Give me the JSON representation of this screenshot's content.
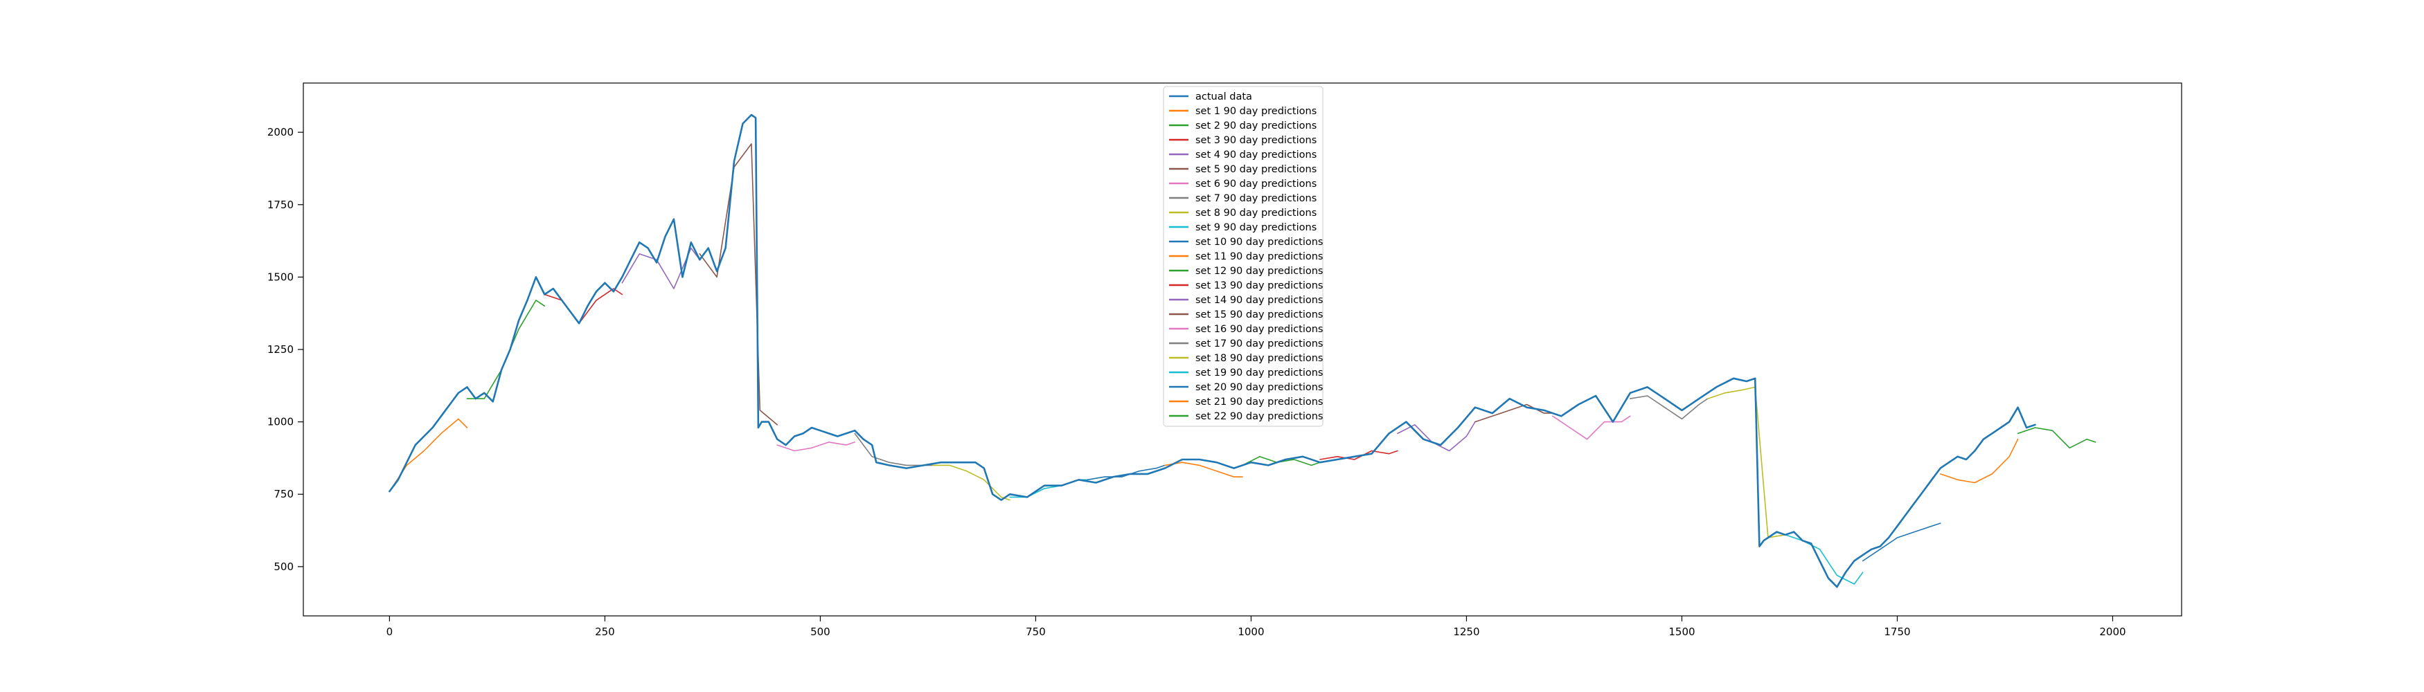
{
  "chart_data": {
    "type": "line",
    "title": "",
    "xlabel": "",
    "ylabel": "",
    "xlim": [
      -100,
      2080
    ],
    "ylim": [
      330,
      2170
    ],
    "xticks": [
      0,
      250,
      500,
      750,
      1000,
      1250,
      1500,
      1750,
      2000
    ],
    "yticks": [
      500,
      750,
      1000,
      1250,
      1500,
      1750,
      2000
    ],
    "grid": false,
    "legend_position": "upper center",
    "series": [
      {
        "name": "actual data",
        "color": "#1f77b4",
        "width": 2.6,
        "x": [
          0,
          10,
          20,
          30,
          40,
          50,
          60,
          70,
          80,
          90,
          100,
          110,
          120,
          130,
          140,
          150,
          160,
          170,
          180,
          190,
          200,
          210,
          220,
          230,
          240,
          250,
          260,
          270,
          280,
          290,
          300,
          310,
          320,
          330,
          340,
          350,
          360,
          370,
          380,
          390,
          400,
          410,
          420,
          425,
          428,
          432,
          440,
          450,
          460,
          470,
          480,
          490,
          500,
          510,
          520,
          530,
          540,
          550,
          560,
          565,
          580,
          600,
          620,
          640,
          660,
          680,
          690,
          700,
          710,
          720,
          740,
          760,
          780,
          800,
          820,
          840,
          860,
          880,
          900,
          920,
          940,
          960,
          980,
          1000,
          1020,
          1040,
          1060,
          1080,
          1100,
          1120,
          1140,
          1160,
          1180,
          1200,
          1220,
          1240,
          1260,
          1280,
          1300,
          1320,
          1340,
          1360,
          1380,
          1400,
          1420,
          1440,
          1460,
          1480,
          1500,
          1520,
          1540,
          1560,
          1575,
          1585,
          1590,
          1595,
          1600,
          1610,
          1620,
          1630,
          1640,
          1650,
          1660,
          1670,
          1680,
          1690,
          1700,
          1710,
          1720,
          1730,
          1740,
          1750,
          1760,
          1770,
          1780,
          1790,
          1800,
          1810,
          1820,
          1830,
          1840,
          1850,
          1860,
          1870,
          1880,
          1890,
          1900,
          1910
        ],
        "y": [
          760,
          800,
          860,
          920,
          950,
          980,
          1020,
          1060,
          1100,
          1120,
          1080,
          1100,
          1070,
          1180,
          1250,
          1350,
          1420,
          1500,
          1440,
          1460,
          1420,
          1380,
          1340,
          1400,
          1450,
          1480,
          1450,
          1500,
          1560,
          1620,
          1600,
          1550,
          1640,
          1700,
          1500,
          1620,
          1560,
          1600,
          1520,
          1600,
          1900,
          2030,
          2060,
          2050,
          980,
          1000,
          1000,
          940,
          920,
          950,
          960,
          980,
          970,
          960,
          950,
          960,
          970,
          940,
          920,
          860,
          850,
          840,
          850,
          860,
          860,
          860,
          840,
          750,
          730,
          750,
          740,
          780,
          780,
          800,
          790,
          810,
          820,
          820,
          840,
          870,
          870,
          860,
          840,
          860,
          850,
          870,
          880,
          860,
          870,
          880,
          890,
          960,
          1000,
          940,
          920,
          980,
          1050,
          1030,
          1080,
          1050,
          1040,
          1020,
          1060,
          1090,
          1000,
          1100,
          1120,
          1080,
          1040,
          1080,
          1120,
          1150,
          1140,
          1150,
          570,
          590,
          600,
          620,
          610,
          620,
          590,
          580,
          520,
          460,
          430,
          480,
          520,
          540,
          560,
          570,
          600,
          640,
          680,
          720,
          760,
          800,
          840,
          860,
          880,
          870,
          900,
          940,
          960,
          980,
          1000,
          1050,
          980,
          990
        ]
      },
      {
        "name": "set 1 90 day predictions",
        "color": "#ff7f0e",
        "width": 1.6,
        "x": [
          0,
          20,
          40,
          60,
          80,
          90
        ],
        "y": [
          760,
          850,
          900,
          960,
          1010,
          980
        ]
      },
      {
        "name": "set 2 90 day predictions",
        "color": "#2ca02c",
        "width": 1.6,
        "x": [
          90,
          110,
          130,
          150,
          170,
          180
        ],
        "y": [
          1080,
          1080,
          1180,
          1320,
          1420,
          1400
        ]
      },
      {
        "name": "set 3 90 day predictions",
        "color": "#d62728",
        "width": 1.6,
        "x": [
          180,
          200,
          220,
          240,
          260,
          270
        ],
        "y": [
          1440,
          1420,
          1340,
          1420,
          1460,
          1440
        ]
      },
      {
        "name": "set 4 90 day predictions",
        "color": "#9467bd",
        "width": 1.6,
        "x": [
          270,
          290,
          310,
          330,
          350,
          360
        ],
        "y": [
          1480,
          1580,
          1560,
          1460,
          1600,
          1560
        ]
      },
      {
        "name": "set 5 90 day predictions",
        "color": "#8c564b",
        "width": 1.6,
        "x": [
          360,
          380,
          400,
          420,
          430,
          450
        ],
        "y": [
          1580,
          1500,
          1880,
          1960,
          1040,
          990
        ]
      },
      {
        "name": "set 6 90 day predictions",
        "color": "#e377c2",
        "width": 1.6,
        "x": [
          450,
          470,
          490,
          510,
          530,
          540
        ],
        "y": [
          920,
          900,
          910,
          930,
          920,
          930
        ]
      },
      {
        "name": "set 7 90 day predictions",
        "color": "#7f7f7f",
        "width": 1.6,
        "x": [
          540,
          560,
          580,
          600,
          620,
          630
        ],
        "y": [
          960,
          880,
          860,
          850,
          850,
          850
        ]
      },
      {
        "name": "set 8 90 day predictions",
        "color": "#bcbd22",
        "width": 1.6,
        "x": [
          630,
          650,
          670,
          690,
          710,
          720
        ],
        "y": [
          850,
          850,
          830,
          800,
          740,
          730
        ]
      },
      {
        "name": "set 9 90 day predictions",
        "color": "#17becf",
        "width": 1.6,
        "x": [
          720,
          740,
          760,
          780,
          800,
          810
        ],
        "y": [
          740,
          740,
          770,
          780,
          800,
          800
        ]
      },
      {
        "name": "set 10 90 day predictions",
        "color": "#1f77b4",
        "width": 1.6,
        "x": [
          810,
          830,
          850,
          870,
          890,
          900
        ],
        "y": [
          800,
          810,
          810,
          830,
          840,
          850
        ]
      },
      {
        "name": "set 11 90 day predictions",
        "color": "#ff7f0e",
        "width": 1.6,
        "x": [
          900,
          920,
          940,
          960,
          980,
          990
        ],
        "y": [
          850,
          860,
          850,
          830,
          810,
          810
        ]
      },
      {
        "name": "set 12 90 day predictions",
        "color": "#2ca02c",
        "width": 1.6,
        "x": [
          990,
          1010,
          1030,
          1050,
          1070,
          1080
        ],
        "y": [
          850,
          880,
          860,
          870,
          850,
          860
        ]
      },
      {
        "name": "set 13 90 day predictions",
        "color": "#d62728",
        "width": 1.6,
        "x": [
          1080,
          1100,
          1120,
          1140,
          1160,
          1170
        ],
        "y": [
          870,
          880,
          870,
          900,
          890,
          900
        ]
      },
      {
        "name": "set 14 90 day predictions",
        "color": "#9467bd",
        "width": 1.6,
        "x": [
          1170,
          1190,
          1210,
          1230,
          1250,
          1260
        ],
        "y": [
          960,
          990,
          930,
          900,
          950,
          1000
        ]
      },
      {
        "name": "set 15 90 day predictions",
        "color": "#8c564b",
        "width": 1.6,
        "x": [
          1260,
          1280,
          1300,
          1320,
          1340,
          1350
        ],
        "y": [
          1000,
          1020,
          1040,
          1060,
          1030,
          1030
        ]
      },
      {
        "name": "set 16 90 day predictions",
        "color": "#e377c2",
        "width": 1.6,
        "x": [
          1350,
          1370,
          1390,
          1410,
          1430,
          1440
        ],
        "y": [
          1020,
          980,
          940,
          1000,
          1000,
          1020
        ]
      },
      {
        "name": "set 17 90 day predictions",
        "color": "#7f7f7f",
        "width": 1.6,
        "x": [
          1440,
          1460,
          1480,
          1500,
          1520,
          1530
        ],
        "y": [
          1080,
          1090,
          1050,
          1010,
          1060,
          1080
        ]
      },
      {
        "name": "set 18 90 day predictions",
        "color": "#bcbd22",
        "width": 1.6,
        "x": [
          1530,
          1550,
          1570,
          1585,
          1600,
          1620
        ],
        "y": [
          1080,
          1100,
          1110,
          1120,
          600,
          610
        ]
      },
      {
        "name": "set 19 90 day predictions",
        "color": "#17becf",
        "width": 1.6,
        "x": [
          1620,
          1640,
          1660,
          1680,
          1700,
          1710
        ],
        "y": [
          610,
          590,
          560,
          470,
          440,
          480
        ]
      },
      {
        "name": "set 20 90 day predictions",
        "color": "#1f77b4",
        "width": 1.6,
        "x": [
          1710,
          1730,
          1750,
          1770,
          1790,
          1800
        ],
        "y": [
          520,
          560,
          600,
          620,
          640,
          650
        ]
      },
      {
        "name": "set 21 90 day predictions",
        "color": "#ff7f0e",
        "width": 1.6,
        "x": [
          1800,
          1820,
          1840,
          1860,
          1880,
          1890
        ],
        "y": [
          820,
          800,
          790,
          820,
          880,
          940
        ]
      },
      {
        "name": "set 22 90 day predictions",
        "color": "#2ca02c",
        "width": 1.6,
        "x": [
          1890,
          1910,
          1930,
          1950,
          1970,
          1980
        ],
        "y": [
          960,
          980,
          970,
          910,
          940,
          930
        ]
      }
    ]
  }
}
